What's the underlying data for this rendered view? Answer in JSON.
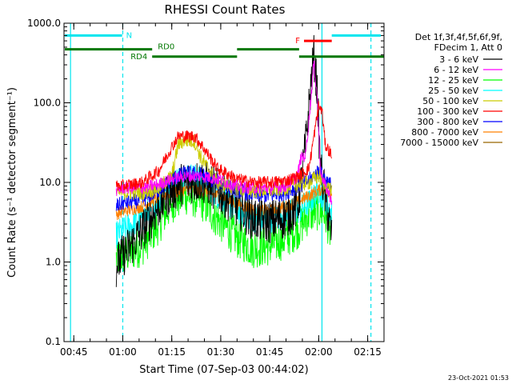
{
  "chart_data": {
    "type": "line",
    "title": "RHESSI Count Rates",
    "xlabel": "Start Time (07-Sep-03 00:44:02)",
    "ylabel": "Count Rate (s⁻¹ detector segment⁻¹)",
    "yscale": "log",
    "ylim": [
      0.1,
      1000.0
    ],
    "xlim_minutes": [
      -2,
      96
    ],
    "x_ticks": [
      {
        "t": 1,
        "label": "00:45"
      },
      {
        "t": 16,
        "label": "01:00"
      },
      {
        "t": 31,
        "label": "01:15"
      },
      {
        "t": 46,
        "label": "01:30"
      },
      {
        "t": 61,
        "label": "01:45"
      },
      {
        "t": 76,
        "label": "02:00"
      },
      {
        "t": 91,
        "label": "02:15"
      }
    ],
    "y_ticks": [
      {
        "v": 0.1,
        "label": "0.1"
      },
      {
        "v": 1.0,
        "label": "1.0"
      },
      {
        "v": 10.0,
        "label": "10.0"
      },
      {
        "v": 100.0,
        "label": "100.0"
      },
      {
        "v": 1000.0,
        "label": "1000.0"
      }
    ],
    "legend_header": [
      "Det 1f,3f,4f,5f,6f,9f,",
      "FDecim 1, Att 0"
    ],
    "series": [
      {
        "name": "3 - 6 keV",
        "color": "#000000",
        "t": [
          14,
          16,
          22,
          27,
          31,
          35,
          40,
          45,
          51,
          56,
          61,
          66,
          69.5,
          70.5,
          72,
          73.5,
          74.5,
          75.5,
          76.5,
          77.5,
          80
        ],
        "v": [
          0.9,
          1.2,
          2.5,
          5,
          8,
          10,
          10.5,
          8,
          5,
          3.5,
          3.2,
          3.7,
          5,
          9,
          30,
          150,
          400,
          150,
          15,
          9,
          2
        ]
      },
      {
        "name": "6 - 12 keV",
        "color": "#ff00ff",
        "t": [
          14,
          16,
          22,
          27,
          31,
          35,
          40,
          45,
          51,
          56,
          61,
          66,
          69.5,
          70.5,
          72,
          73.5,
          74.5,
          75.5,
          76.5,
          77.5,
          80
        ],
        "v": [
          8,
          8.5,
          8.5,
          9.5,
          11,
          12,
          12,
          11,
          9,
          8.5,
          8.5,
          9,
          12,
          20,
          22,
          100,
          320,
          130,
          15,
          10,
          6
        ]
      },
      {
        "name": "12 - 25 keV",
        "color": "#00ff00",
        "t": [
          14,
          16,
          22,
          27,
          31,
          35,
          40,
          45,
          51,
          56,
          61,
          66,
          70,
          73,
          76,
          78,
          80
        ],
        "v": [
          1.1,
          1.2,
          1.6,
          3,
          5.5,
          7,
          6,
          3.5,
          2,
          1.5,
          1.6,
          2,
          2.7,
          4,
          4.5,
          4,
          2
        ]
      },
      {
        "name": "25 - 50 keV",
        "color": "#00ffff",
        "t": [
          14,
          16,
          22,
          27,
          31,
          35,
          40,
          45,
          51,
          56,
          61,
          66,
          70,
          73,
          76,
          78,
          80
        ],
        "v": [
          2.2,
          2.5,
          3.5,
          6,
          10,
          12.5,
          11,
          7,
          4.5,
          3.5,
          3.4,
          4,
          4.5,
          5.5,
          8,
          6,
          4
        ]
      },
      {
        "name": "50 - 100 keV",
        "color": "#cccc00",
        "t": [
          14,
          16,
          22,
          27,
          31,
          33,
          35,
          38,
          40,
          45,
          51,
          56,
          61,
          66,
          70,
          73,
          76,
          78,
          80
        ],
        "v": [
          7.5,
          7.5,
          7.5,
          8.5,
          12,
          30,
          34,
          33,
          20,
          10,
          8.5,
          8,
          8,
          8.5,
          9.5,
          10,
          12,
          9,
          8
        ]
      },
      {
        "name": "100 - 300 keV",
        "color": "#ff0000",
        "t": [
          14,
          16,
          22,
          27,
          31,
          33,
          35,
          38,
          40,
          45,
          51,
          56,
          61,
          66,
          70,
          73,
          75,
          76,
          77,
          78,
          80
        ],
        "v": [
          9,
          9,
          10,
          14,
          28,
          38,
          38,
          38,
          30,
          15,
          11,
          10,
          10,
          10.5,
          12,
          15,
          50,
          90,
          80,
          30,
          22
        ]
      },
      {
        "name": "300 - 800 keV",
        "color": "#0000ff",
        "t": [
          14,
          16,
          22,
          27,
          31,
          35,
          40,
          45,
          51,
          56,
          61,
          66,
          70,
          73,
          76,
          78,
          80
        ],
        "v": [
          5,
          5.5,
          6,
          8,
          11,
          13,
          12.5,
          10,
          8,
          7,
          6.8,
          7.5,
          9,
          10.5,
          14,
          11,
          9
        ]
      },
      {
        "name": "800 - 7000 keV",
        "color": "#ff8000",
        "t": [
          14,
          16,
          22,
          27,
          31,
          35,
          40,
          45,
          51,
          56,
          61,
          66,
          70,
          73,
          76,
          78,
          80
        ],
        "v": [
          4,
          4.3,
          5,
          6.5,
          7.5,
          8,
          8,
          6.8,
          5.5,
          4.5,
          4.4,
          5,
          5.8,
          6.8,
          8,
          8.2,
          7
        ]
      },
      {
        "name": "7000 - 15000 keV",
        "color": "#996600",
        "t": [],
        "v": []
      }
    ],
    "annotations": [
      {
        "label": "N",
        "color": "#00e5ee",
        "t_start": -2,
        "t_end": 15.8,
        "level": 700
      },
      {
        "label": "F",
        "color": "#ff0000",
        "t_start": 71.5,
        "t_end": 80,
        "level": 600
      },
      {
        "label": "",
        "color": "#00e5ee",
        "t_start": 80,
        "t_end": 95,
        "level": 700
      },
      {
        "label": "RD0",
        "color": "#007700",
        "t_start": -2,
        "t_end": 25,
        "level": 470
      },
      {
        "label": "RD4",
        "color": "#007700",
        "t_start": 25,
        "t_end": 51,
        "level": 380
      },
      {
        "label": "",
        "color": "#007700",
        "t_start": 51,
        "t_end": 70,
        "level": 470
      },
      {
        "label": "",
        "color": "#007700",
        "t_start": 70,
        "t_end": 96,
        "level": 380
      }
    ],
    "vertical_markers": [
      {
        "t": 0,
        "color": "#00e5ee",
        "style": "solid"
      },
      {
        "t": 16,
        "color": "#00e5ee",
        "style": "dashed"
      },
      {
        "t": 77,
        "color": "#00e5ee",
        "style": "solid"
      },
      {
        "t": 92,
        "color": "#00e5ee",
        "style": "dashed"
      }
    ]
  },
  "footer_date": "23-Oct-2021 01:53"
}
